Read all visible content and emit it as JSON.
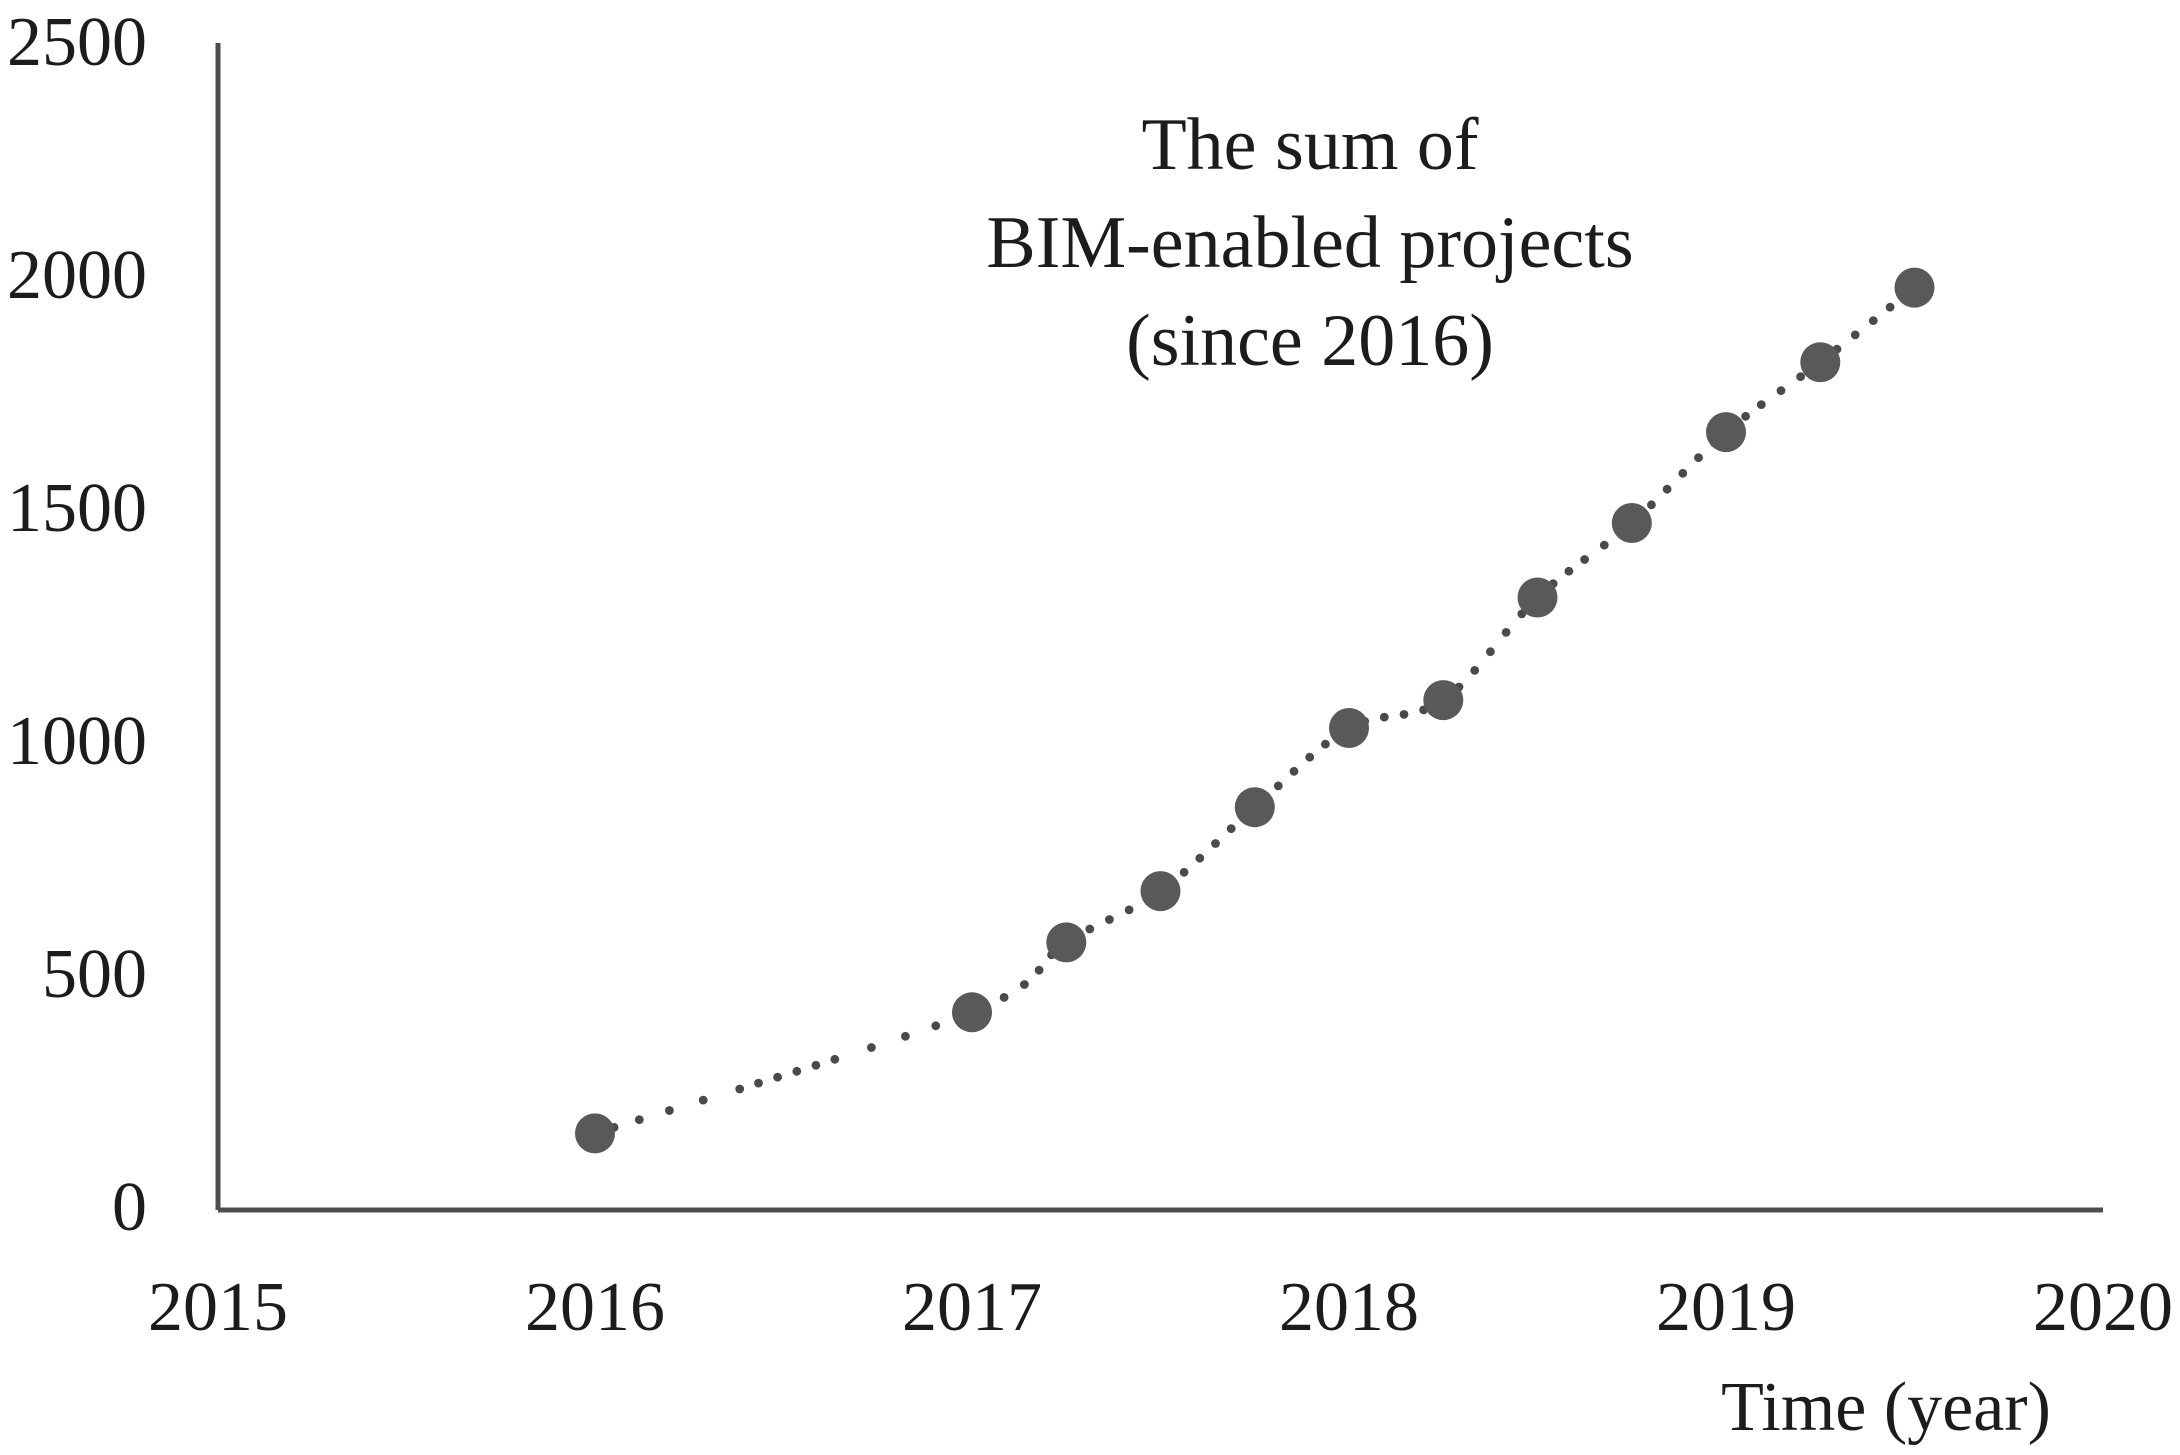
{
  "chart_data": {
    "type": "scatter",
    "title_lines": [
      "The sum of",
      "BIM-enabled projects",
      "(since 2016)"
    ],
    "xlabel": "Time (year)",
    "ylabel": "",
    "xlim": [
      2015,
      2020
    ],
    "ylim": [
      0,
      2500
    ],
    "grid": false,
    "legend_position": "none",
    "x_ticks": [
      {
        "value": 2015,
        "label": "2015"
      },
      {
        "value": 2016,
        "label": "2016"
      },
      {
        "value": 2017,
        "label": "2017"
      },
      {
        "value": 2018,
        "label": "2018"
      },
      {
        "value": 2019,
        "label": "2019"
      },
      {
        "value": 2020,
        "label": "2020"
      }
    ],
    "y_ticks": [
      {
        "value": 0,
        "label": "0"
      },
      {
        "value": 500,
        "label": "500"
      },
      {
        "value": 1000,
        "label": "1000"
      },
      {
        "value": 1500,
        "label": "1500"
      },
      {
        "value": 2000,
        "label": "2000"
      },
      {
        "value": 2500,
        "label": "2500"
      }
    ],
    "series": [
      {
        "name": "Sum of BIM-enabled projects",
        "marker": "circle",
        "trendline_style": "dotted",
        "points": [
          {
            "x": 2016.0,
            "y": 160
          },
          {
            "x": 2017.0,
            "y": 420
          },
          {
            "x": 2017.25,
            "y": 570
          },
          {
            "x": 2017.5,
            "y": 680
          },
          {
            "x": 2017.75,
            "y": 860
          },
          {
            "x": 2018.0,
            "y": 1030
          },
          {
            "x": 2018.25,
            "y": 1090
          },
          {
            "x": 2018.5,
            "y": 1310
          },
          {
            "x": 2018.75,
            "y": 1470
          },
          {
            "x": 2019.0,
            "y": 1665
          },
          {
            "x": 2019.25,
            "y": 1815
          },
          {
            "x": 2019.5,
            "y": 1975
          }
        ]
      }
    ]
  },
  "colors": {
    "axis": "#4d4d4d",
    "marker": "#595959",
    "trend_dot": "#4a4a4a",
    "text": "#1c1c1c"
  }
}
